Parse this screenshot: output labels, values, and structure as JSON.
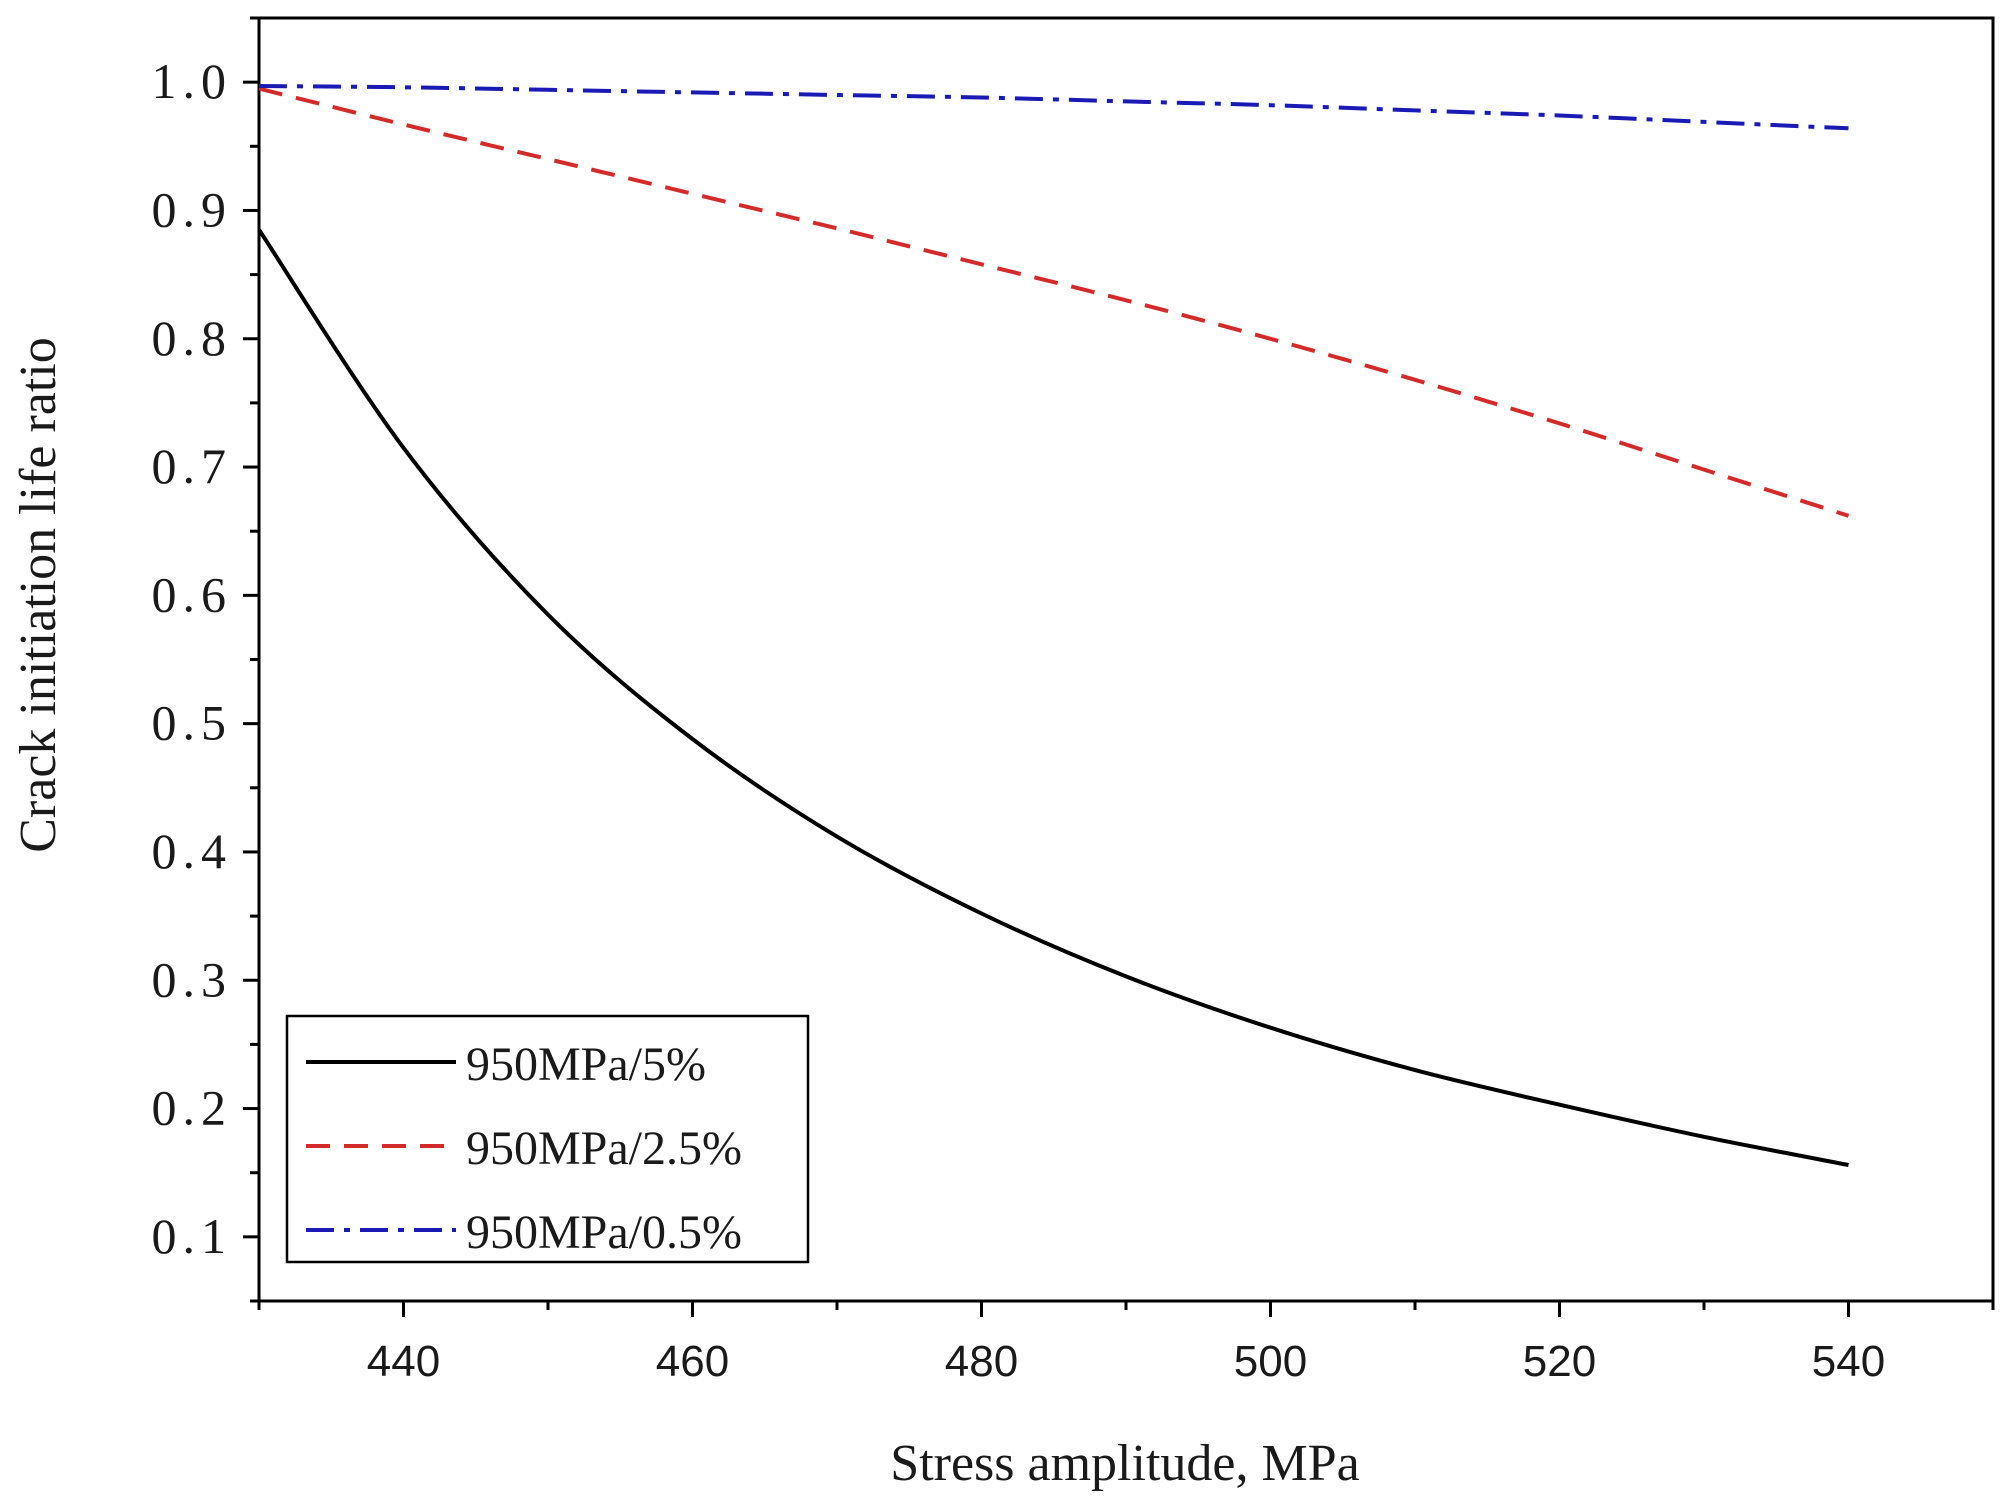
{
  "chart_data": {
    "type": "line",
    "title": "",
    "xlabel": "Stress amplitude, MPa",
    "ylabel": "Crack initiation life ratio",
    "xlim": [
      430,
      550
    ],
    "ylim": [
      0.05,
      1.05
    ],
    "x_ticks": [
      440,
      460,
      480,
      500,
      520,
      540
    ],
    "x_tick_labels": [
      "440",
      "460",
      "480",
      "500",
      "520",
      "540"
    ],
    "y_ticks": [
      0.1,
      0.2,
      0.3,
      0.4,
      0.5,
      0.6,
      0.7,
      0.8,
      0.9,
      1.0
    ],
    "y_tick_labels": [
      "0.1",
      "0.2",
      "0.3",
      "0.4",
      "0.5",
      "0.6",
      "0.7",
      "0.8",
      "0.9",
      "1.0"
    ],
    "grid": false,
    "legend_position": "bottom-left",
    "x": [
      430,
      440,
      450,
      460,
      470,
      480,
      490,
      500,
      510,
      520,
      530,
      540
    ],
    "series": [
      {
        "name": "950MPa/5%",
        "color": "#000000",
        "dash": "solid",
        "values": [
          0.885,
          0.715,
          0.585,
          0.488,
          0.412,
          0.352,
          0.303,
          0.263,
          0.23,
          0.203,
          0.178,
          0.156
        ]
      },
      {
        "name": "950MPa/2.5%",
        "color": "#d42a2a",
        "dash": "dash",
        "values": [
          0.995,
          0.967,
          0.94,
          0.913,
          0.886,
          0.858,
          0.83,
          0.8,
          0.768,
          0.734,
          0.698,
          0.662
        ]
      },
      {
        "name": "950MPa/0.5%",
        "color": "#1a1ab5",
        "dash": "dashdot",
        "values": [
          0.997,
          0.996,
          0.994,
          0.992,
          0.99,
          0.988,
          0.985,
          0.982,
          0.978,
          0.974,
          0.969,
          0.964
        ]
      }
    ]
  }
}
